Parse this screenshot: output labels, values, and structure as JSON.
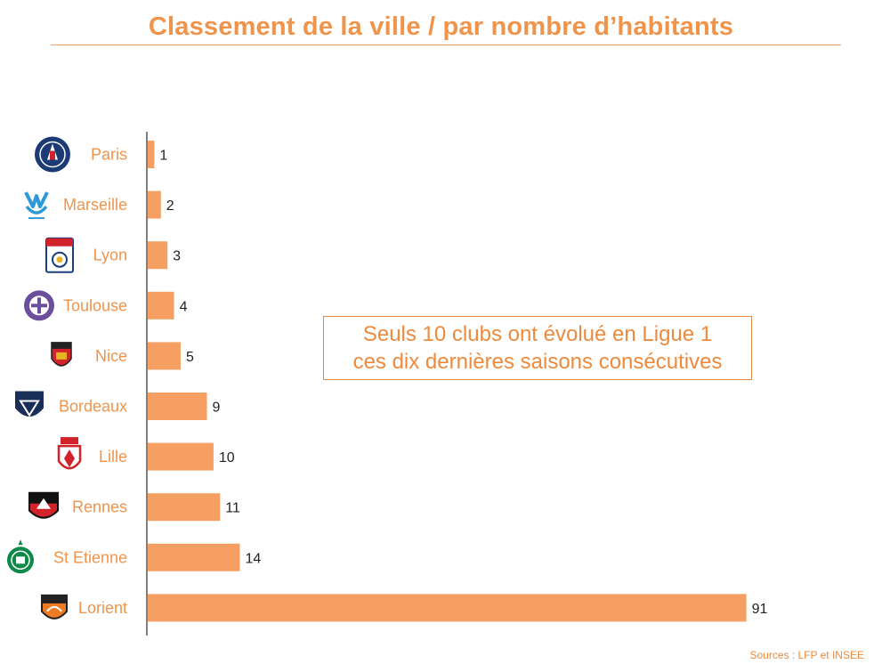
{
  "title": "Classement de la ville / par nombre d’habitants",
  "callout": {
    "line1": "Seuls 10 clubs ont évolué en Ligue 1",
    "line2": "ces dix dernières saisons consécutives"
  },
  "sources": "Sources : LFP et INSEE",
  "colors": {
    "accent": "#f0944b",
    "bar": "#f5a062",
    "axis": "#000000",
    "value_label": "#222222"
  },
  "chart_data": {
    "type": "bar",
    "orientation": "horizontal",
    "categories": [
      "Paris",
      "Marseille",
      "Lyon",
      "Toulouse",
      "Nice",
      "Bordeaux",
      "Lille",
      "Rennes",
      "St Etienne",
      "Lorient"
    ],
    "values": [
      1,
      2,
      3,
      4,
      5,
      9,
      10,
      11,
      14,
      91
    ],
    "title": "Classement de la ville / par nombre d’habitants",
    "xlabel": "",
    "ylabel": "",
    "xlim": [
      0,
      92
    ],
    "grid": false,
    "legend": "none",
    "category_icons": [
      "psg-crest-icon",
      "om-crest-icon",
      "ol-crest-icon",
      "tfc-crest-icon",
      "ogcn-crest-icon",
      "girondins-crest-icon",
      "losc-crest-icon",
      "srfc-crest-icon",
      "asse-crest-icon",
      "fcl-crest-icon"
    ]
  }
}
